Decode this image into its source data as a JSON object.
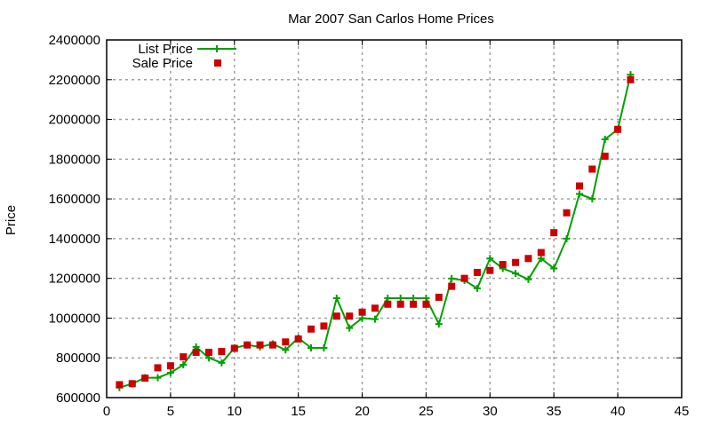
{
  "chart_data": {
    "type": "line",
    "title": "Mar 2007 San Carlos Home Prices",
    "xlabel": "",
    "ylabel": "Price",
    "xlim": [
      0,
      45
    ],
    "ylim": [
      600000,
      2400000
    ],
    "xticks": [
      0,
      5,
      10,
      15,
      20,
      25,
      30,
      35,
      40,
      45
    ],
    "yticks": [
      600000,
      800000,
      1000000,
      1200000,
      1400000,
      1600000,
      1800000,
      2000000,
      2200000,
      2400000
    ],
    "grid": true,
    "legend_position": "top-left",
    "x": [
      1,
      2,
      3,
      4,
      5,
      6,
      7,
      8,
      9,
      10,
      11,
      12,
      13,
      14,
      15,
      16,
      17,
      18,
      19,
      20,
      21,
      22,
      23,
      24,
      25,
      26,
      27,
      28,
      29,
      30,
      31,
      32,
      33,
      34,
      35,
      36,
      37,
      38,
      39,
      40,
      41
    ],
    "series": [
      {
        "name": "List Price",
        "style": "linespoints",
        "color": "#00a000",
        "values": [
          650000,
          670000,
          700000,
          700000,
          725000,
          765000,
          855000,
          800000,
          775000,
          850000,
          865000,
          855000,
          870000,
          840000,
          900000,
          850000,
          850000,
          1100000,
          950000,
          1000000,
          995000,
          1100000,
          1100000,
          1100000,
          1100000,
          970000,
          1199000,
          1190000,
          1150000,
          1300000,
          1250000,
          1225000,
          1195000,
          1300000,
          1250000,
          1400000,
          1625000,
          1600000,
          1900000,
          1950000,
          2225000
        ]
      },
      {
        "name": "Sale Price",
        "style": "points",
        "color": "#cc0000",
        "values": [
          665000,
          670000,
          698000,
          750000,
          760000,
          805000,
          828000,
          828000,
          832000,
          848000,
          865000,
          865000,
          865000,
          880000,
          895000,
          945000,
          960000,
          1010000,
          1010000,
          1030000,
          1050000,
          1070000,
          1070000,
          1070000,
          1070000,
          1105000,
          1160000,
          1200000,
          1230000,
          1240000,
          1270000,
          1280000,
          1300000,
          1330000,
          1430000,
          1530000,
          1665000,
          1750000,
          1815000,
          1950000,
          2200000
        ]
      }
    ]
  }
}
